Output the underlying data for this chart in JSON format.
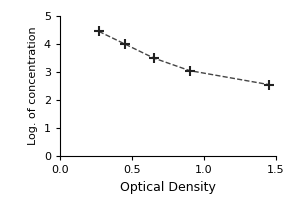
{
  "x": [
    0.27,
    0.45,
    0.65,
    0.9,
    1.45
  ],
  "y": [
    4.45,
    4.0,
    3.5,
    3.05,
    2.55
  ],
  "xlabel": "Optical Density",
  "ylabel": "Log. of concentration",
  "xlim": [
    0,
    1.5
  ],
  "ylim": [
    0,
    5
  ],
  "xticks": [
    0,
    0.5,
    1,
    1.5
  ],
  "yticks": [
    0,
    1,
    2,
    3,
    4,
    5
  ],
  "line_color": "#444444",
  "marker_color": "#222222",
  "background_color": "#ffffff",
  "plot_bg_color": "#ffffff",
  "line_style": "--",
  "marker_style": "+",
  "xlabel_fontsize": 9,
  "ylabel_fontsize": 8,
  "tick_fontsize": 8,
  "linewidth": 1.0,
  "markersize": 7,
  "markeredgewidth": 1.5
}
